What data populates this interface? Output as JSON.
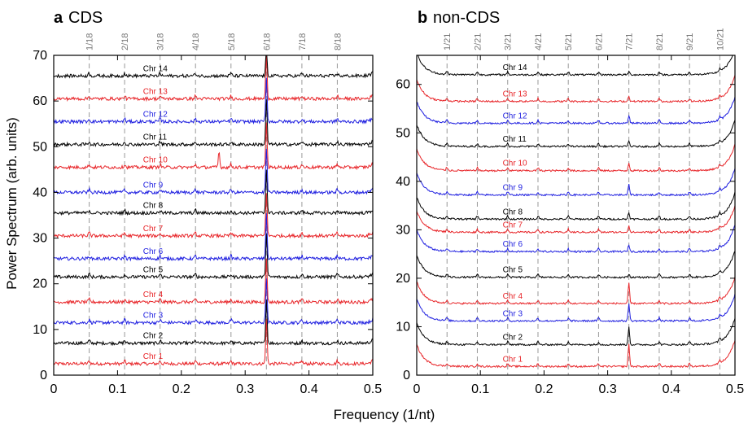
{
  "figure": {
    "xlabel": "Frequency (1/nt)",
    "ylabel": "Power Spectrum (arb. units)"
  },
  "chart_data": [
    {
      "type": "line",
      "panel_letter": "a",
      "title": "CDS",
      "xlim": [
        0,
        0.5
      ],
      "ylim": [
        0,
        70
      ],
      "xticks": [
        0,
        0.1,
        0.2,
        0.3,
        0.4,
        0.5
      ],
      "xtick_labels": [
        "0",
        "0.1",
        "0.2",
        "0.3",
        "0.4",
        "0.5"
      ],
      "yticks": [
        0,
        10,
        20,
        30,
        40,
        50,
        60,
        70
      ],
      "ytick_labels": [
        "0",
        "10",
        "20",
        "30",
        "40",
        "50",
        "60",
        "70"
      ],
      "grid": "vertical dashed at marker frequencies",
      "markers": [
        {
          "label": "1/18",
          "x": 0.0556
        },
        {
          "label": "2/18",
          "x": 0.1111
        },
        {
          "label": "3/18",
          "x": 0.1667
        },
        {
          "label": "4/18",
          "x": 0.2222
        },
        {
          "label": "5/18",
          "x": 0.2778
        },
        {
          "label": "6/18",
          "x": 0.3333
        },
        {
          "label": "7/18",
          "x": 0.3889
        },
        {
          "label": "8/18",
          "x": 0.4444
        }
      ],
      "series": [
        {
          "name": "Chr 1",
          "color": "#e8262a",
          "baseline": 2.5,
          "main_peak": 9
        },
        {
          "name": "Chr 2",
          "color": "#000000",
          "baseline": 7,
          "main_peak": 9
        },
        {
          "name": "Chr 3",
          "color": "#1f1fe0",
          "baseline": 11.5,
          "main_peak": 9
        },
        {
          "name": "Chr 4",
          "color": "#e8262a",
          "baseline": 16,
          "main_peak": 9
        },
        {
          "name": "Chr 5",
          "color": "#000000",
          "baseline": 21.5,
          "main_peak": 9
        },
        {
          "name": "Chr 6",
          "color": "#1f1fe0",
          "baseline": 25.5,
          "main_peak": 9
        },
        {
          "name": "Chr 7",
          "color": "#e8262a",
          "baseline": 30.5,
          "main_peak": 9
        },
        {
          "name": "Chr 8",
          "color": "#000000",
          "baseline": 35.5,
          "main_peak": 9
        },
        {
          "name": "Chr 9",
          "color": "#1f1fe0",
          "baseline": 40,
          "main_peak": 9
        },
        {
          "name": "Chr 10",
          "color": "#e8262a",
          "baseline": 45.5,
          "main_peak": 9,
          "extra_peaks": [
            {
              "x": 0.259,
              "h": 3.5
            }
          ]
        },
        {
          "name": "Chr 11",
          "color": "#000000",
          "baseline": 50.5,
          "main_peak": 9
        },
        {
          "name": "Chr 12",
          "color": "#1f1fe0",
          "baseline": 55.5,
          "main_peak": 9
        },
        {
          "name": "Chr 13",
          "color": "#e8262a",
          "baseline": 60.5,
          "main_peak": 9
        },
        {
          "name": "Chr 14",
          "color": "#000000",
          "baseline": 65.5,
          "main_peak": 5
        }
      ]
    },
    {
      "type": "line",
      "panel_letter": "b",
      "title": "non-CDS",
      "xlim": [
        0,
        0.5
      ],
      "ylim": [
        0,
        66
      ],
      "xticks": [
        0,
        0.1,
        0.2,
        0.3,
        0.4,
        0.5
      ],
      "xtick_labels": [
        "0",
        "0.1",
        "0.2",
        "0.3",
        "0.4",
        "0.5"
      ],
      "yticks": [
        0,
        10,
        20,
        30,
        40,
        50,
        60
      ],
      "ytick_labels": [
        "0",
        "10",
        "20",
        "30",
        "40",
        "50",
        "60"
      ],
      "grid": "vertical dashed at marker frequencies",
      "markers": [
        {
          "label": "1/21",
          "x": 0.0476
        },
        {
          "label": "2/21",
          "x": 0.0952
        },
        {
          "label": "3/21",
          "x": 0.1429
        },
        {
          "label": "4/21",
          "x": 0.1905
        },
        {
          "label": "5/21",
          "x": 0.2381
        },
        {
          "label": "6/21",
          "x": 0.2857
        },
        {
          "label": "7/21",
          "x": 0.3333
        },
        {
          "label": "8/21",
          "x": 0.381
        },
        {
          "label": "9/21",
          "x": 0.4286
        },
        {
          "label": "10/21",
          "x": 0.4762
        }
      ],
      "series": [
        {
          "name": "Chr 1",
          "color": "#e8262a",
          "baseline": 1.8,
          "main_peak": 4
        },
        {
          "name": "Chr 2",
          "color": "#000000",
          "baseline": 6.3,
          "main_peak": 3
        },
        {
          "name": "Chr 3",
          "color": "#1f1fe0",
          "baseline": 11.2,
          "main_peak": 3
        },
        {
          "name": "Chr 4",
          "color": "#e8262a",
          "baseline": 14.8,
          "main_peak": 3.5
        },
        {
          "name": "Chr 5",
          "color": "#000000",
          "baseline": 20.2,
          "main_peak": 0
        },
        {
          "name": "Chr 6",
          "color": "#1f1fe0",
          "baseline": 25.5,
          "main_peak": 0.8
        },
        {
          "name": "Chr 7",
          "color": "#e8262a",
          "baseline": 29.5,
          "main_peak": 0.8
        },
        {
          "name": "Chr 8",
          "color": "#000000",
          "baseline": 32.2,
          "main_peak": 0.8
        },
        {
          "name": "Chr 9",
          "color": "#1f1fe0",
          "baseline": 37.2,
          "main_peak": 1.5
        },
        {
          "name": "Chr 10",
          "color": "#e8262a",
          "baseline": 42.2,
          "main_peak": 1
        },
        {
          "name": "Chr 11",
          "color": "#000000",
          "baseline": 47.2,
          "main_peak": 0.5
        },
        {
          "name": "Chr 12",
          "color": "#1f1fe0",
          "baseline": 52,
          "main_peak": 1
        },
        {
          "name": "Chr 13",
          "color": "#e8262a",
          "baseline": 56.5,
          "main_peak": 0.5
        },
        {
          "name": "Chr 14",
          "color": "#000000",
          "baseline": 62,
          "main_peak": 0
        }
      ]
    }
  ]
}
